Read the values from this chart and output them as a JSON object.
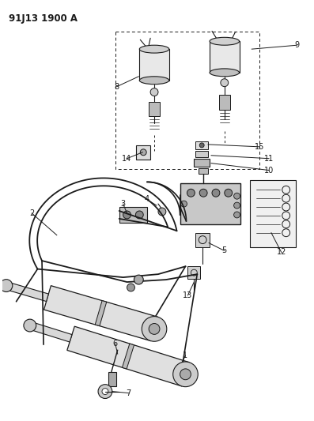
{
  "title": "91J13 1900 A",
  "bg_color": "#ffffff",
  "lc": "#1a1a1a",
  "fig_width": 3.97,
  "fig_height": 5.33,
  "dpi": 100,
  "label_fontsize": 7,
  "title_fontsize": 8.5
}
